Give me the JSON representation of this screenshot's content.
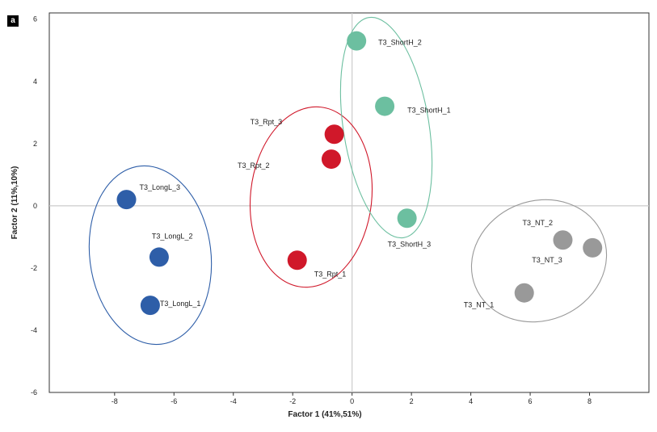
{
  "panel_label": "a",
  "chart_data": {
    "type": "scatter",
    "xlabel": "Factor 1 (41%,51%)",
    "ylabel": "Factor 2 (11%,10%)",
    "xlim": [
      -10.2,
      10
    ],
    "ylim": [
      -6,
      6.2
    ],
    "xticks": [
      -8,
      -6,
      -4,
      -2,
      0,
      2,
      4,
      6,
      8
    ],
    "yticks": [
      -6,
      -4,
      -2,
      0,
      2,
      4,
      6
    ],
    "grid": false,
    "zero_lines": true,
    "groups": [
      {
        "color": "#2e5ea8",
        "points": [
          {
            "label": "T3_LongL_3",
            "x": -7.6,
            "y": 0.2
          },
          {
            "label": "T3_LongL_2",
            "x": -6.5,
            "y": -1.65
          },
          {
            "label": "T3_LongL_1",
            "x": -6.8,
            "y": -3.2
          }
        ]
      },
      {
        "color": "#d0182a",
        "points": [
          {
            "label": "T3_Rpt_3",
            "x": -0.6,
            "y": 2.3
          },
          {
            "label": "T3_Rpt_2",
            "x": -0.7,
            "y": 1.5
          },
          {
            "label": "T3_Rpt_1",
            "x": -1.85,
            "y": -1.75
          }
        ]
      },
      {
        "color": "#6cbfa0",
        "points": [
          {
            "label": "T3_ShortH_2",
            "x": 0.15,
            "y": 5.3
          },
          {
            "label": "T3_ShortH_1",
            "x": 1.1,
            "y": 3.2
          },
          {
            "label": "T3_ShortH_3",
            "x": 1.85,
            "y": -0.4
          }
        ]
      },
      {
        "color": "#999999",
        "points": [
          {
            "label": "T3_NT_2",
            "x": 7.1,
            "y": -1.1
          },
          {
            "label": "T3_NT_3",
            "x": 8.1,
            "y": -1.35
          },
          {
            "label": "T3_NT_1",
            "x": 5.8,
            "y": -2.8
          }
        ]
      }
    ]
  }
}
